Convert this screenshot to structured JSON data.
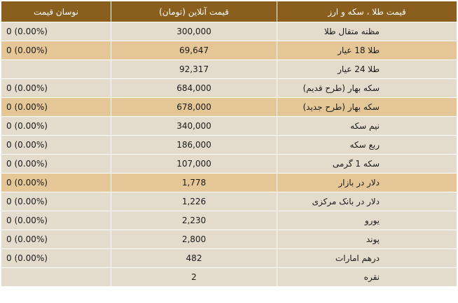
{
  "headers": {
    "item": "قیمت طلا ، سکه و ارز",
    "price": "قیمت آنلاین (تومان)",
    "change": "نوسان قیمت"
  },
  "rows": [
    {
      "name": "مظنه متقال طلا",
      "price": "300,000",
      "change": "0 (0.00%)",
      "highlight": false
    },
    {
      "name": "طلا 18 عیار",
      "price": "69,647",
      "change": "0 (0.00%)",
      "highlight": true
    },
    {
      "name": "طلا 24 عیار",
      "price": "92,317",
      "change": "",
      "highlight": false
    },
    {
      "name": "سکه بهار (طرح قدیم)",
      "price": "684,000",
      "change": "0 (0.00%)",
      "highlight": false
    },
    {
      "name": "سکه بهار (طرح جدید)",
      "price": "678,000",
      "change": "0 (0.00%)",
      "highlight": true
    },
    {
      "name": "نیم سکه",
      "price": "340,000",
      "change": "0 (0.00%)",
      "highlight": false
    },
    {
      "name": "ربع سکه",
      "price": "186,000",
      "change": "0 (0.00%)",
      "highlight": false
    },
    {
      "name": "سکه 1 گرمی",
      "price": "107,000",
      "change": "0 (0.00%)",
      "highlight": false
    },
    {
      "name": "دلار در بازار",
      "price": "1,778",
      "change": "0 (0.00%)",
      "highlight": true
    },
    {
      "name": "دلار در بانک مرکزی",
      "price": "1,226",
      "change": "0 (0.00%)",
      "highlight": false
    },
    {
      "name": "یورو",
      "price": "2,230",
      "change": "0 (0.00%)",
      "highlight": false
    },
    {
      "name": "پوند",
      "price": "2,800",
      "change": "0 (0.00%)",
      "highlight": false
    },
    {
      "name": "درهم امارات",
      "price": "482",
      "change": "0 (0.00%)",
      "highlight": false
    },
    {
      "name": "نقره",
      "price": "2",
      "change": "",
      "highlight": false
    }
  ],
  "colors": {
    "header_bg": "#8a5f1d",
    "row_bg": "#e3dccd",
    "highlight_bg": "#e5c797"
  }
}
